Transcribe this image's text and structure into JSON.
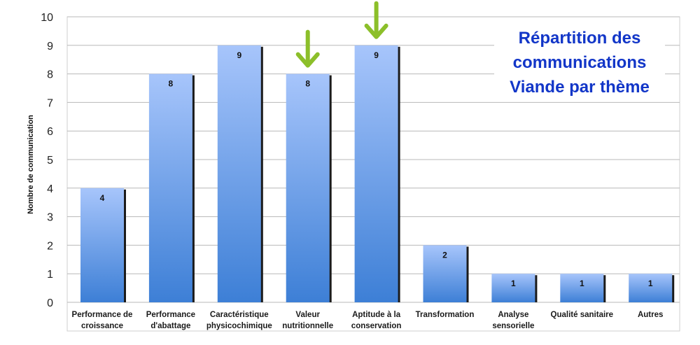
{
  "chart_data": {
    "type": "bar",
    "title_lines": [
      "Répartition des",
      "communications",
      "Viande par thème"
    ],
    "ylabel": "Nombre de communication",
    "xlabel": "",
    "ylim": [
      0,
      10
    ],
    "yticks": [
      0,
      1,
      2,
      3,
      4,
      5,
      6,
      7,
      8,
      9,
      10
    ],
    "grid": true,
    "categories": [
      [
        "Performance de",
        "croissance"
      ],
      [
        "Performance",
        "d'abattage"
      ],
      [
        "Caractéristique",
        "physicochimique"
      ],
      [
        "Valeur",
        "nutritionnelle"
      ],
      [
        "Aptitude à la",
        "conservation"
      ],
      [
        "Transformation"
      ],
      [
        "Analyse",
        "sensorielle"
      ],
      [
        "Qualité sanitaire"
      ],
      [
        "Autres"
      ]
    ],
    "values": [
      4,
      8,
      9,
      8,
      9,
      2,
      1,
      1,
      1
    ],
    "highlighted_indices": [
      3,
      4
    ],
    "colors": {
      "bar_top": "#a7c5fb",
      "bar_bottom": "#3d7fd6",
      "bar_shadow": "#1b1b1b",
      "arrow": "#8cbf2a",
      "title": "#1236c8",
      "grid": "#b8b8b8"
    }
  }
}
